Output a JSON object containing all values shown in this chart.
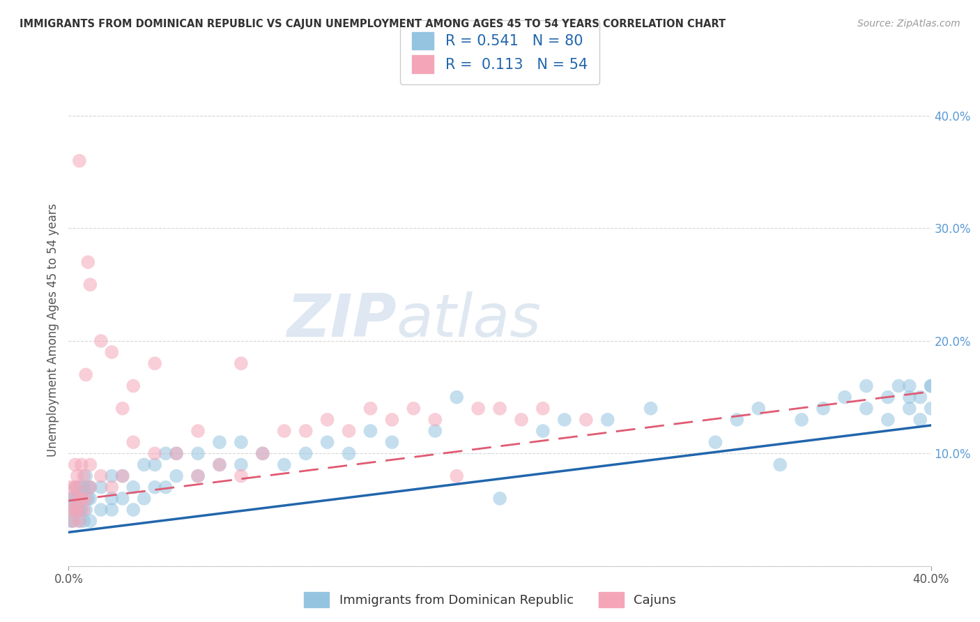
{
  "title": "IMMIGRANTS FROM DOMINICAN REPUBLIC VS CAJUN UNEMPLOYMENT AMONG AGES 45 TO 54 YEARS CORRELATION CHART",
  "source": "Source: ZipAtlas.com",
  "ylabel": "Unemployment Among Ages 45 to 54 years",
  "xlim": [
    0.0,
    0.4
  ],
  "ylim": [
    0.0,
    0.42
  ],
  "yticks": [
    0.0,
    0.1,
    0.2,
    0.3,
    0.4
  ],
  "ytick_labels": [
    "",
    "10.0%",
    "20.0%",
    "30.0%",
    "40.0%"
  ],
  "blue_R": 0.541,
  "blue_N": 80,
  "pink_R": 0.113,
  "pink_N": 54,
  "blue_color": "#94c4e0",
  "pink_color": "#f4a6b8",
  "blue_line_color": "#2166ac",
  "pink_line_color": "#e05a72",
  "watermark_zip": "ZIP",
  "watermark_atlas": "atlas",
  "legend_label_blue": "Immigrants from Dominican Republic",
  "legend_label_pink": "Cajuns",
  "blue_scatter_x": [
    0.001,
    0.001,
    0.001,
    0.002,
    0.002,
    0.003,
    0.003,
    0.004,
    0.004,
    0.005,
    0.005,
    0.005,
    0.006,
    0.006,
    0.007,
    0.007,
    0.008,
    0.008,
    0.009,
    0.009,
    0.01,
    0.01,
    0.01,
    0.015,
    0.015,
    0.02,
    0.02,
    0.02,
    0.025,
    0.025,
    0.03,
    0.03,
    0.035,
    0.035,
    0.04,
    0.04,
    0.045,
    0.045,
    0.05,
    0.05,
    0.06,
    0.06,
    0.07,
    0.07,
    0.08,
    0.08,
    0.09,
    0.1,
    0.11,
    0.12,
    0.13,
    0.14,
    0.15,
    0.17,
    0.18,
    0.2,
    0.22,
    0.23,
    0.25,
    0.27,
    0.3,
    0.31,
    0.32,
    0.33,
    0.34,
    0.35,
    0.36,
    0.37,
    0.37,
    0.38,
    0.38,
    0.385,
    0.39,
    0.39,
    0.39,
    0.395,
    0.395,
    0.4,
    0.4,
    0.4
  ],
  "blue_scatter_y": [
    0.04,
    0.05,
    0.06,
    0.04,
    0.06,
    0.05,
    0.07,
    0.05,
    0.06,
    0.04,
    0.05,
    0.07,
    0.05,
    0.06,
    0.04,
    0.07,
    0.05,
    0.08,
    0.06,
    0.07,
    0.04,
    0.06,
    0.07,
    0.05,
    0.07,
    0.05,
    0.06,
    0.08,
    0.06,
    0.08,
    0.05,
    0.07,
    0.06,
    0.09,
    0.07,
    0.09,
    0.07,
    0.1,
    0.08,
    0.1,
    0.08,
    0.1,
    0.09,
    0.11,
    0.09,
    0.11,
    0.1,
    0.09,
    0.1,
    0.11,
    0.1,
    0.12,
    0.11,
    0.12,
    0.15,
    0.06,
    0.12,
    0.13,
    0.13,
    0.14,
    0.11,
    0.13,
    0.14,
    0.09,
    0.13,
    0.14,
    0.15,
    0.16,
    0.14,
    0.15,
    0.13,
    0.16,
    0.14,
    0.15,
    0.16,
    0.13,
    0.15,
    0.14,
    0.16,
    0.16
  ],
  "pink_scatter_x": [
    0.001,
    0.001,
    0.002,
    0.002,
    0.003,
    0.003,
    0.003,
    0.004,
    0.004,
    0.004,
    0.005,
    0.005,
    0.005,
    0.006,
    0.006,
    0.007,
    0.007,
    0.008,
    0.008,
    0.009,
    0.01,
    0.01,
    0.01,
    0.015,
    0.015,
    0.02,
    0.02,
    0.025,
    0.025,
    0.03,
    0.03,
    0.04,
    0.04,
    0.05,
    0.06,
    0.06,
    0.07,
    0.08,
    0.08,
    0.09,
    0.1,
    0.11,
    0.12,
    0.13,
    0.14,
    0.15,
    0.16,
    0.17,
    0.18,
    0.19,
    0.2,
    0.21,
    0.22,
    0.24
  ],
  "pink_scatter_y": [
    0.05,
    0.07,
    0.04,
    0.06,
    0.05,
    0.07,
    0.09,
    0.05,
    0.07,
    0.08,
    0.04,
    0.06,
    0.36,
    0.06,
    0.09,
    0.05,
    0.08,
    0.06,
    0.17,
    0.27,
    0.07,
    0.09,
    0.25,
    0.08,
    0.2,
    0.07,
    0.19,
    0.08,
    0.14,
    0.11,
    0.16,
    0.1,
    0.18,
    0.1,
    0.08,
    0.12,
    0.09,
    0.08,
    0.18,
    0.1,
    0.12,
    0.12,
    0.13,
    0.12,
    0.14,
    0.13,
    0.14,
    0.13,
    0.08,
    0.14,
    0.14,
    0.13,
    0.14,
    0.13
  ],
  "blue_line_x0": 0.0,
  "blue_line_y0": 0.03,
  "blue_line_x1": 0.4,
  "blue_line_y1": 0.125,
  "pink_line_x0": 0.0,
  "pink_line_y0": 0.058,
  "pink_line_x1": 0.4,
  "pink_line_y1": 0.155,
  "background_color": "#ffffff",
  "grid_color": "#cccccc"
}
